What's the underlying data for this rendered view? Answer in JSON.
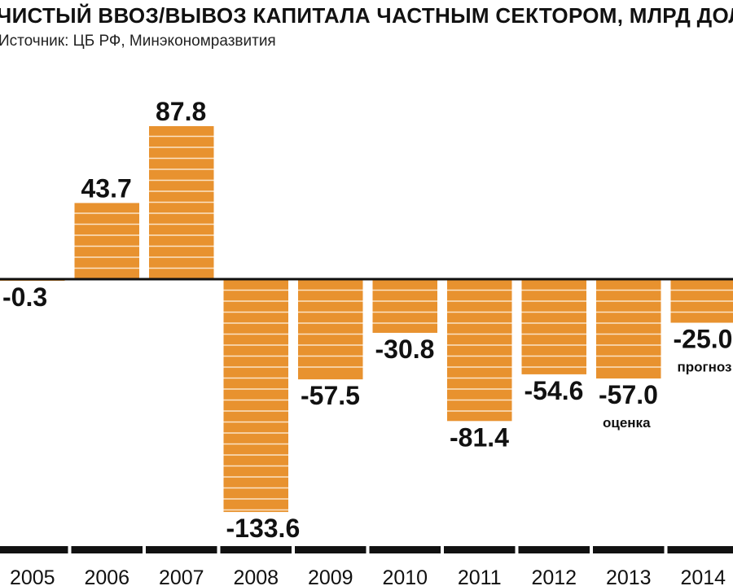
{
  "chart_data": {
    "type": "bar",
    "title": "ЧИСТЫЙ ВВОЗ/ВЫВОЗ КАПИТАЛА ЧАСТНЫМ СЕКТОРОМ, МЛРД ДОЛЛ",
    "subtitle": "Источник: ЦБ РФ, Минэкономразвития",
    "categories": [
      "2005",
      "2006",
      "2007",
      "2008",
      "2009",
      "2010",
      "2011",
      "2012",
      "2013",
      "2014"
    ],
    "values": [
      -0.3,
      43.7,
      87.8,
      -133.6,
      -57.5,
      -30.8,
      -81.4,
      -54.6,
      -57.0,
      -25.0
    ],
    "value_labels": [
      "-0.3",
      "43.7",
      "87.8",
      "-133.6",
      "-57.5",
      "-30.8",
      "-81.4",
      "-54.6",
      "-57.0",
      "-25.0"
    ],
    "annotations": [
      {
        "category": "2013",
        "text": "оценка"
      },
      {
        "category": "2014",
        "text": "прогноз"
      }
    ],
    "ylim": [
      -133.6,
      87.8
    ],
    "grid": false,
    "colors": {
      "bar": "#e8922f",
      "stripe": "#fbe3c6",
      "axis": "#111111"
    }
  }
}
